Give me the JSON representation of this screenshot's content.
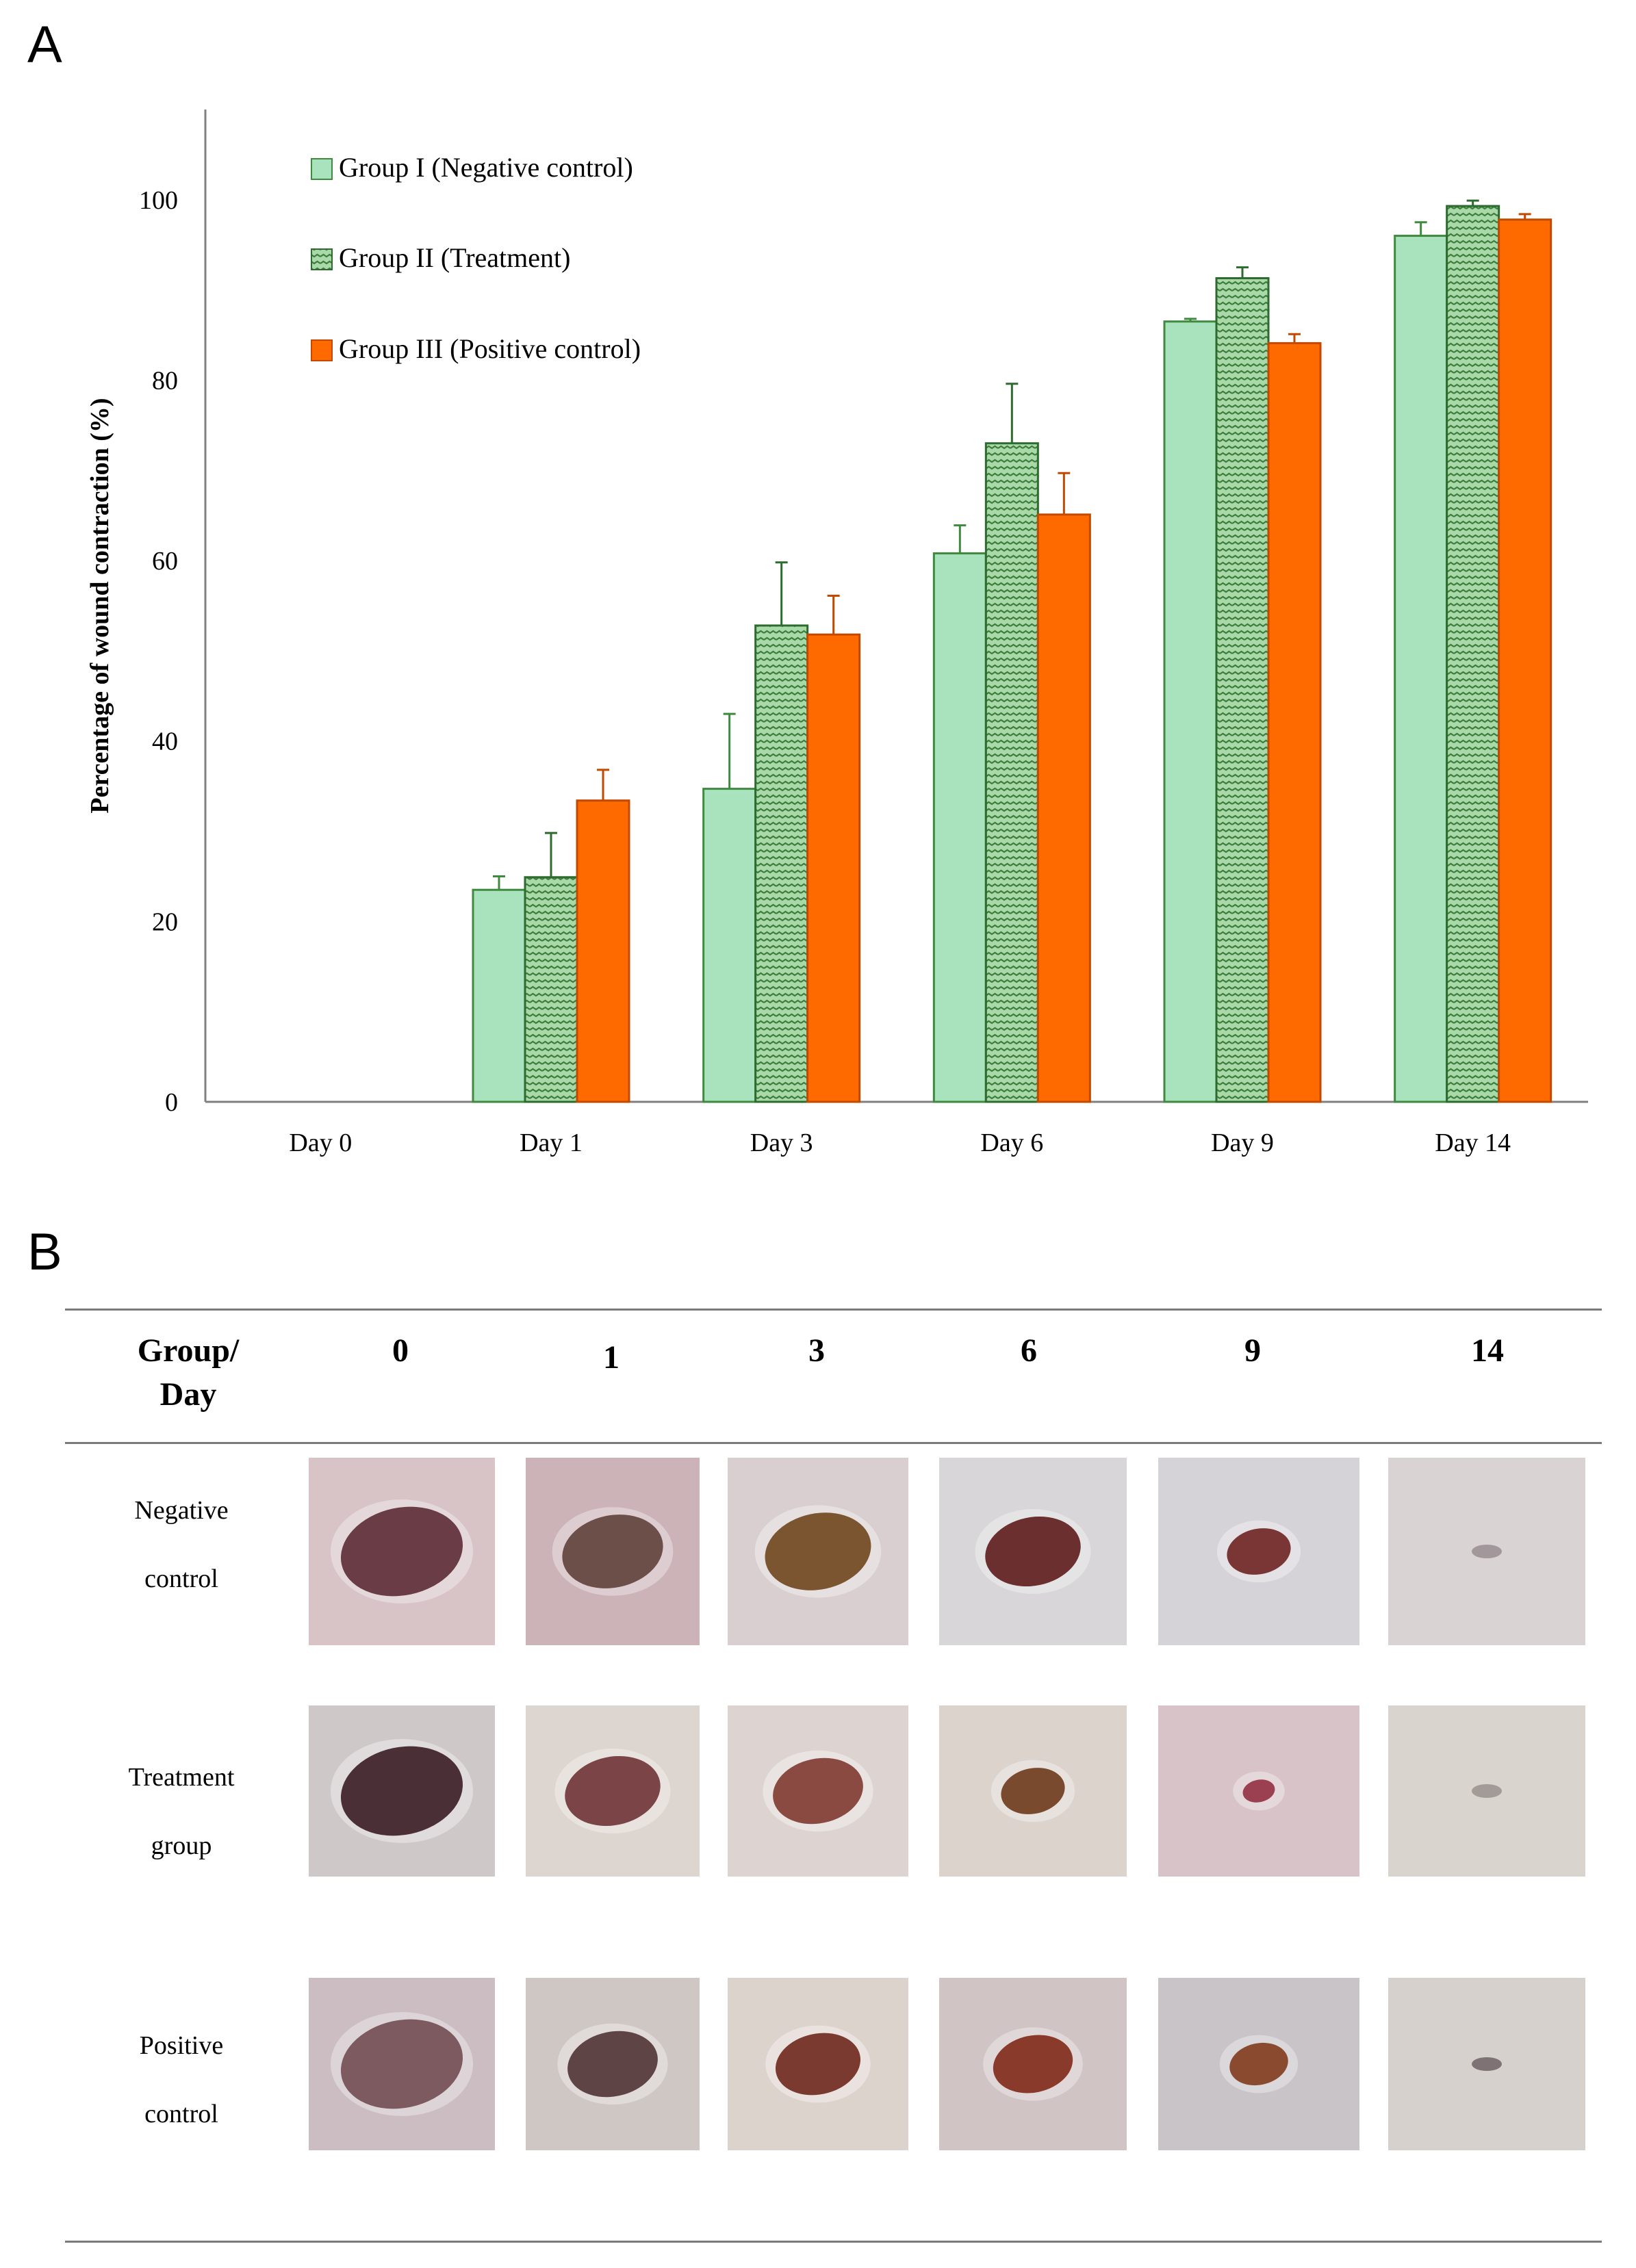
{
  "panel_a_label": "A",
  "panel_b_label": "B",
  "colors": {
    "group1_fill": "#A9E3BD",
    "group1_edge": "#3F8A3F",
    "group2_fill": "#8CC58C",
    "group2_edge": "#2E6B2E",
    "group3_fill": "#FF6A00",
    "group3_edge": "#C24A00",
    "axis": "#808080"
  },
  "chart_data": {
    "type": "bar",
    "title": "",
    "xlabel": "",
    "ylabel": "Percentage of wound contraction (%)",
    "ylim": [
      0,
      110
    ],
    "yticks": [
      0,
      20,
      40,
      60,
      80,
      100
    ],
    "categories": [
      "Day 0",
      "Day 1",
      "Day 3",
      "Day 6",
      "Day 9",
      "Day 14"
    ],
    "legend_position": "top-left",
    "series": [
      {
        "name": "Group I (Negative control)",
        "values": [
          0,
          23.5,
          34.7,
          60.8,
          86.5,
          96
        ],
        "errors": [
          0,
          1.5,
          8.3,
          3.1,
          0.3,
          1.5
        ]
      },
      {
        "name": "Group II (Treatment)",
        "values": [
          0,
          24.9,
          52.8,
          73,
          91.3,
          99.3
        ],
        "errors": [
          0,
          4.9,
          7,
          6.6,
          1.2,
          0.6
        ]
      },
      {
        "name": "Group III (Positive control)",
        "values": [
          0,
          33.4,
          51.8,
          65.1,
          84.1,
          97.8
        ],
        "errors": [
          0,
          3.4,
          4.3,
          4.6,
          1.0,
          0.6
        ]
      }
    ]
  },
  "table": {
    "header_group": "Group/",
    "header_day": "Day",
    "days": [
      "0",
      "1",
      "3",
      "6",
      "9",
      "14"
    ],
    "rows": [
      {
        "label_line1": "Negative",
        "label_line2": "control",
        "wound_scale": [
          1.0,
          0.8,
          0.85,
          0.75,
          0.45,
          0.0
        ]
      },
      {
        "label_line1": "Treatment",
        "label_line2": "group",
        "wound_scale": [
          1.0,
          0.75,
          0.7,
          0.45,
          0.15,
          0.0
        ]
      },
      {
        "label_line1": "Positive",
        "label_line2": "control",
        "wound_scale": [
          1.0,
          0.7,
          0.65,
          0.6,
          0.4,
          0.0
        ]
      }
    ]
  }
}
